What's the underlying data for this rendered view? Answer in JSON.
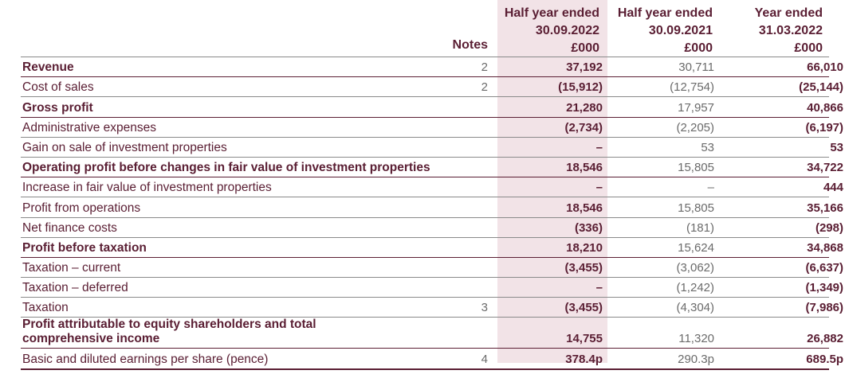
{
  "headers": {
    "notes": "Notes",
    "col1": [
      "Half year ended",
      "30.09.2022",
      "£000"
    ],
    "col2": [
      "Half year ended",
      "30.09.2021",
      "£000"
    ],
    "col3": [
      "Year ended",
      "31.03.2022",
      "£000"
    ]
  },
  "rows": [
    {
      "label": "Revenue",
      "note": "2",
      "c1": "37,192",
      "c2": "30,711",
      "c3": "66,010"
    },
    {
      "label": "Cost of sales",
      "note": "2",
      "c1": "(15,912)",
      "c2": "(12,754)",
      "c3": "(25,144)"
    },
    {
      "label": "Gross profit",
      "note": "",
      "c1": "21,280",
      "c2": "17,957",
      "c3": "40,866"
    },
    {
      "label": "Administrative expenses",
      "note": "",
      "c1": "(2,734)",
      "c2": "(2,205)",
      "c3": "(6,197)"
    },
    {
      "label": "Gain on sale of investment properties",
      "note": "",
      "c1": "–",
      "c2": "53",
      "c3": "53"
    },
    {
      "label": "Operating profit before changes in fair value of investment properties",
      "note": "",
      "c1": "18,546",
      "c2": "15,805",
      "c3": "34,722"
    },
    {
      "label": "Increase in fair value of investment properties",
      "note": "",
      "c1": "–",
      "c2": "–",
      "c3": "444"
    },
    {
      "label": "Profit from operations",
      "note": "",
      "c1": "18,546",
      "c2": "15,805",
      "c3": "35,166"
    },
    {
      "label": "Net finance costs",
      "note": "",
      "c1": "(336)",
      "c2": "(181)",
      "c3": "(298)"
    },
    {
      "label": "Profit before taxation",
      "note": "",
      "c1": "18,210",
      "c2": "15,624",
      "c3": "34,868"
    },
    {
      "label": "Taxation – current",
      "note": "",
      "c1": "(3,455)",
      "c2": "(3,062)",
      "c3": "(6,637)"
    },
    {
      "label": "Taxation – deferred",
      "note": "",
      "c1": "–",
      "c2": "(1,242)",
      "c3": "(1,349)"
    },
    {
      "label": "Taxation",
      "note": "3",
      "c1": "(3,455)",
      "c2": "(4,304)",
      "c3": "(7,986)"
    },
    {
      "label": "Profit attributable to equity shareholders and total comprehensive income",
      "note": "",
      "c1": "14,755",
      "c2": "11,320",
      "c3": "26,882"
    },
    {
      "label": "Basic and diluted earnings per share (pence)",
      "note": "4",
      "c1": "378.4p",
      "c2": "290.3p",
      "c3": "689.5p"
    }
  ]
}
